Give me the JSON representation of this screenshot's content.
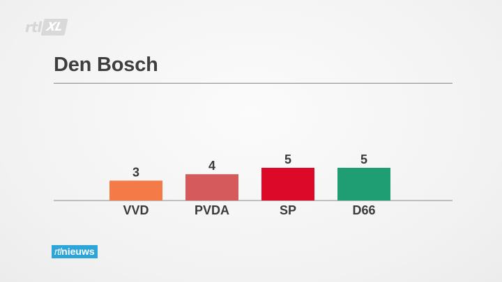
{
  "brand": {
    "channel_logo_prefix": "rtl",
    "channel_logo_box": "XL",
    "news_logo_prefix": "rtl",
    "news_logo_suffix": "nieuws"
  },
  "chart_data": {
    "type": "bar",
    "title": "Den Bosch",
    "xlabel": "",
    "ylabel": "",
    "categories": [
      "VVD",
      "PVDA",
      "SP",
      "D66"
    ],
    "values": [
      3,
      4,
      5,
      5
    ],
    "colors": [
      "#f47a48",
      "#d55a5c",
      "#dc0a28",
      "#1f9e73"
    ],
    "ylim": [
      0,
      5
    ],
    "grid": false,
    "legend": "none"
  },
  "colors": {
    "axis": "#8a8a8a",
    "title": "#3e3e3e",
    "label": "#3a3a3a",
    "news_brand": "#2ea5d8"
  }
}
